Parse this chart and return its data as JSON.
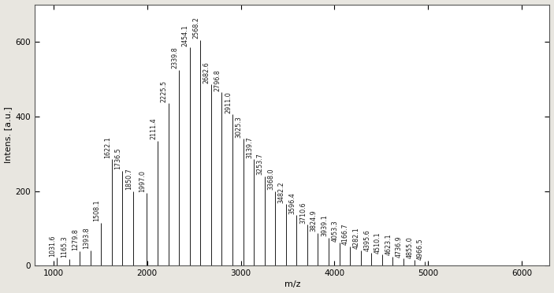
{
  "peaks": [
    {
      "mz": 1031.6,
      "intensity": 22
    },
    {
      "mz": 1165.3,
      "intensity": 18
    },
    {
      "mz": 1279.8,
      "intensity": 38
    },
    {
      "mz": 1393.8,
      "intensity": 42
    },
    {
      "mz": 1508.1,
      "intensity": 115
    },
    {
      "mz": 1622.1,
      "intensity": 285
    },
    {
      "mz": 1736.5,
      "intensity": 255
    },
    {
      "mz": 1850.7,
      "intensity": 200
    },
    {
      "mz": 1997.0,
      "intensity": 195
    },
    {
      "mz": 2111.4,
      "intensity": 335
    },
    {
      "mz": 2225.5,
      "intensity": 435
    },
    {
      "mz": 2339.8,
      "intensity": 525
    },
    {
      "mz": 2454.1,
      "intensity": 585
    },
    {
      "mz": 2568.2,
      "intensity": 605
    },
    {
      "mz": 2682.6,
      "intensity": 485
    },
    {
      "mz": 2796.8,
      "intensity": 465
    },
    {
      "mz": 2911.0,
      "intensity": 405
    },
    {
      "mz": 3025.3,
      "intensity": 340
    },
    {
      "mz": 3139.7,
      "intensity": 285
    },
    {
      "mz": 3253.7,
      "intensity": 240
    },
    {
      "mz": 3368.0,
      "intensity": 200
    },
    {
      "mz": 3482.2,
      "intensity": 165
    },
    {
      "mz": 3596.4,
      "intensity": 135
    },
    {
      "mz": 3710.6,
      "intensity": 110
    },
    {
      "mz": 3824.9,
      "intensity": 88
    },
    {
      "mz": 3939.1,
      "intensity": 75
    },
    {
      "mz": 4053.3,
      "intensity": 62
    },
    {
      "mz": 4166.7,
      "intensity": 52
    },
    {
      "mz": 4282.1,
      "intensity": 42
    },
    {
      "mz": 4395.6,
      "intensity": 35
    },
    {
      "mz": 4510.1,
      "intensity": 30
    },
    {
      "mz": 4623.1,
      "intensity": 25
    },
    {
      "mz": 4736.9,
      "intensity": 20
    },
    {
      "mz": 4855.0,
      "intensity": 16
    },
    {
      "mz": 4966.5,
      "intensity": 12
    }
  ],
  "xlabel": "m/z",
  "ylabel": "Intens. [a.u.]",
  "xlim": [
    800,
    6300
  ],
  "ylim": [
    0,
    700
  ],
  "xticks": [
    1000,
    2000,
    3000,
    4000,
    5000,
    6000
  ],
  "yticks": [
    0,
    200,
    400,
    600
  ],
  "line_color": "#1a1a1a",
  "background_color": "#e8e6e0",
  "plot_bg_color": "#ffffff",
  "label_fontsize": 5.8,
  "axis_label_fontsize": 8,
  "tick_fontsize": 7.5
}
